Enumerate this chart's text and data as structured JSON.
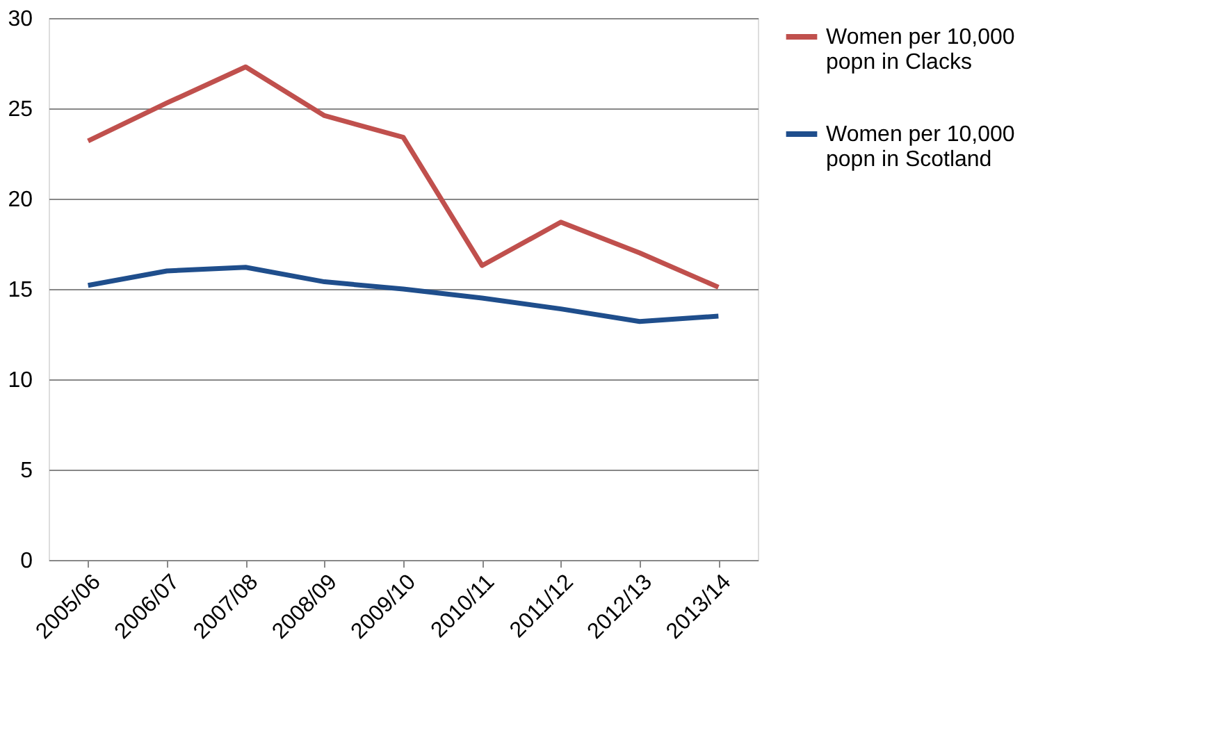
{
  "chart_data": {
    "type": "line",
    "categories": [
      "2005/06",
      "2006/07",
      "2007/08",
      "2008/09",
      "2009/10",
      "2010/11",
      "2011/12",
      "2012/13",
      "2013/14"
    ],
    "series": [
      {
        "name": "Women per 10,000 popn in Clacks",
        "color": "#c0504d",
        "values": [
          23.2,
          25.3,
          27.3,
          24.6,
          23.4,
          16.3,
          18.7,
          17.0,
          15.1
        ]
      },
      {
        "name": "Women per 10,000 popn in Scotland",
        "color": "#1f4e8c",
        "values": [
          15.2,
          16.0,
          16.2,
          15.4,
          15.0,
          14.5,
          13.9,
          13.2,
          13.5
        ]
      }
    ],
    "ylim": [
      0,
      30
    ],
    "yticks": [
      0,
      5,
      10,
      15,
      20,
      25,
      30
    ],
    "grid": "y",
    "legend": "right",
    "marker": "none",
    "line_style": "solid"
  }
}
